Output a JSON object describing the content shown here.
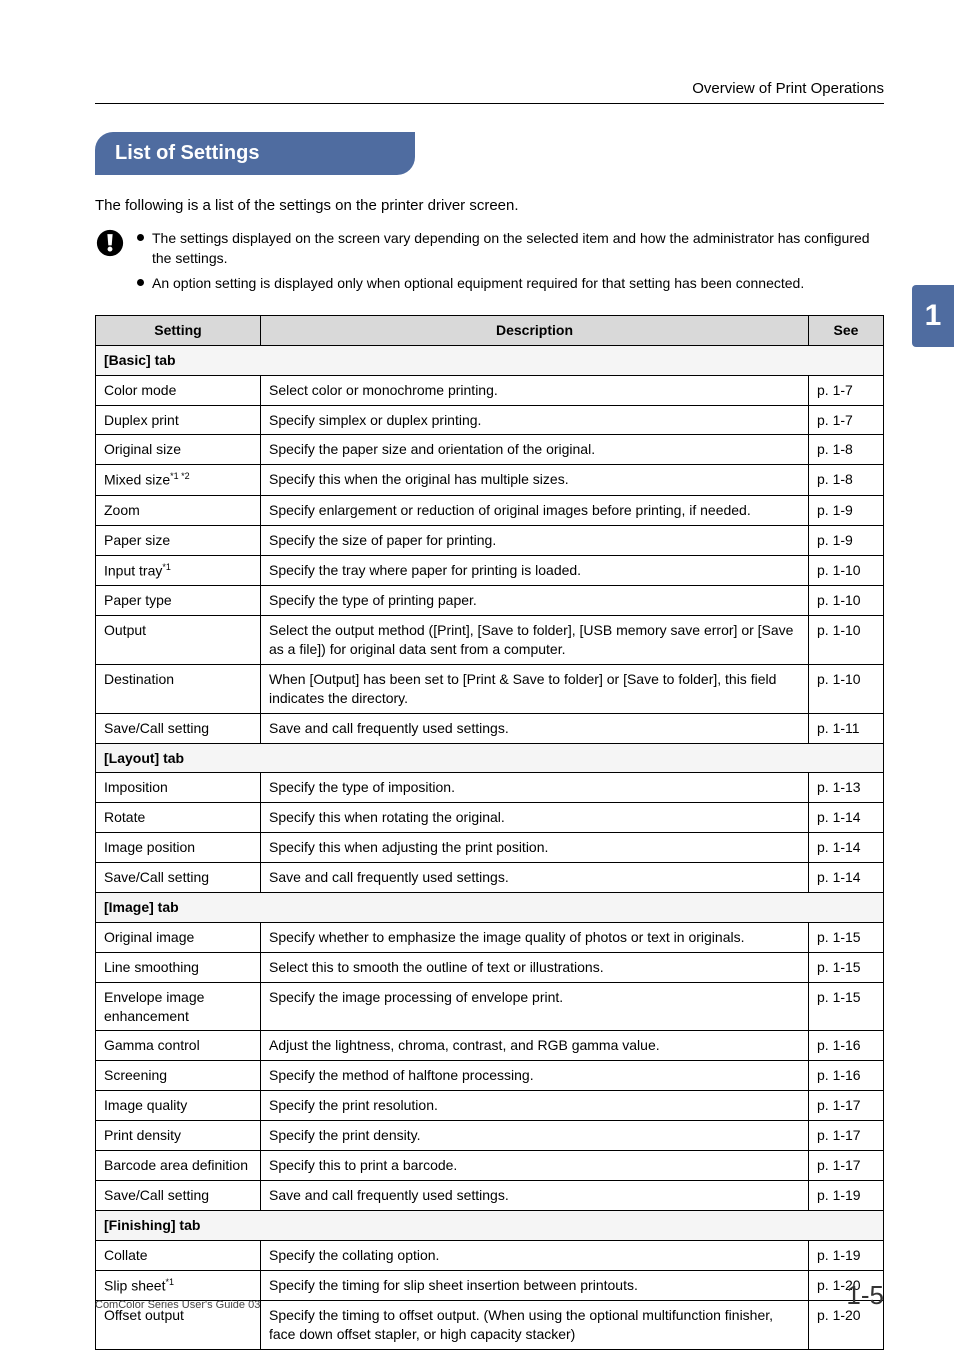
{
  "header": {
    "section_title": "Overview of Print Operations"
  },
  "chapter_tab": "1",
  "title_pill": "List of Settings",
  "intro": "The following is a list of the settings on the printer driver screen.",
  "notes": [
    "The settings displayed on the screen vary depending on the selected item and how the administrator has configured the settings.",
    "An option setting is displayed only when optional equipment required for that setting has been connected."
  ],
  "table": {
    "headers": {
      "setting": "Setting",
      "description": "Description",
      "see": "See"
    },
    "groups": [
      {
        "label": "[Basic] tab",
        "rows": [
          {
            "setting": "Color mode",
            "sup": "",
            "desc": "Select color or monochrome printing.",
            "see": "p. 1-7"
          },
          {
            "setting": "Duplex print",
            "sup": "",
            "desc": "Specify simplex or duplex printing.",
            "see": "p. 1-7"
          },
          {
            "setting": "Original size",
            "sup": "",
            "desc": "Specify the paper size and orientation of the original.",
            "see": "p. 1-8"
          },
          {
            "setting": "Mixed size",
            "sup": "*1 *2",
            "desc": "Specify this when the original has multiple sizes.",
            "see": "p. 1-8"
          },
          {
            "setting": "Zoom",
            "sup": "",
            "desc": "Specify enlargement or reduction of original images before printing, if needed.",
            "see": "p. 1-9"
          },
          {
            "setting": "Paper size",
            "sup": "",
            "desc": "Specify the size of paper for printing.",
            "see": "p. 1-9"
          },
          {
            "setting": "Input tray",
            "sup": "*1",
            "desc": "Specify the tray where paper for printing is loaded.",
            "see": "p. 1-10"
          },
          {
            "setting": "Paper type",
            "sup": "",
            "desc": "Specify the type of printing paper.",
            "see": "p. 1-10"
          },
          {
            "setting": "Output",
            "sup": "",
            "desc": "Select the output method ([Print], [Save to folder], [USB memory save error] or [Save as a file]) for original data sent from a computer.",
            "see": "p. 1-10"
          },
          {
            "setting": "Destination",
            "sup": "",
            "desc": "When [Output] has been set to [Print & Save to folder] or [Save to folder], this field indicates the directory.",
            "see": "p. 1-10"
          },
          {
            "setting": "Save/Call setting",
            "sup": "",
            "desc": "Save and call frequently used settings.",
            "see": "p. 1-11"
          }
        ]
      },
      {
        "label": "[Layout] tab",
        "rows": [
          {
            "setting": "Imposition",
            "sup": "",
            "desc": "Specify the type of imposition.",
            "see": "p. 1-13"
          },
          {
            "setting": "Rotate",
            "sup": "",
            "desc": "Specify this when rotating the original.",
            "see": "p. 1-14"
          },
          {
            "setting": "Image position",
            "sup": "",
            "desc": "Specify this when adjusting the print position.",
            "see": "p. 1-14"
          },
          {
            "setting": "Save/Call setting",
            "sup": "",
            "desc": "Save and call frequently used settings.",
            "see": "p. 1-14"
          }
        ]
      },
      {
        "label": "[Image] tab",
        "rows": [
          {
            "setting": "Original image",
            "sup": "",
            "desc": "Specify whether to emphasize the image quality of photos or text in originals.",
            "see": "p. 1-15"
          },
          {
            "setting": "Line smoothing",
            "sup": "",
            "desc": "Select this to smooth the outline of text or illustrations.",
            "see": "p. 1-15"
          },
          {
            "setting": "Envelope image enhancement",
            "sup": "",
            "desc": "Specify the image processing of envelope print.",
            "see": "p. 1-15"
          },
          {
            "setting": "Gamma control",
            "sup": "",
            "desc": "Adjust the lightness, chroma, contrast, and RGB gamma value.",
            "see": "p. 1-16"
          },
          {
            "setting": "Screening",
            "sup": "",
            "desc": "Specify the method of halftone processing.",
            "see": "p. 1-16"
          },
          {
            "setting": "Image quality",
            "sup": "",
            "desc": "Specify the print resolution.",
            "see": "p. 1-17"
          },
          {
            "setting": "Print density",
            "sup": "",
            "desc": "Specify the print density.",
            "see": "p. 1-17"
          },
          {
            "setting": "Barcode area definition",
            "sup": "",
            "desc": "Specify this to print a barcode.",
            "see": "p. 1-17"
          },
          {
            "setting": "Save/Call setting",
            "sup": "",
            "desc": "Save and call frequently used settings.",
            "see": "p. 1-19"
          }
        ]
      },
      {
        "label": "[Finishing] tab",
        "rows": [
          {
            "setting": "Collate",
            "sup": "",
            "desc": "Specify the collating option.",
            "see": "p. 1-19"
          },
          {
            "setting": "Slip sheet",
            "sup": "*1",
            "desc": "Specify the timing for slip sheet insertion between printouts.",
            "see": "p. 1-20"
          },
          {
            "setting": "Offset output",
            "sup": "",
            "desc": "Specify the timing to offset output. (When using the optional multifunction finisher, face down offset stapler, or high capacity stacker)",
            "see": "p. 1-20"
          }
        ]
      }
    ]
  },
  "footer": {
    "guide": "ComColor Series User's Guide 03",
    "page": "1-5"
  },
  "colors": {
    "accent": "#4f6ca0",
    "header_bg": "#d9d9d9",
    "section_bg": "#f5f5f5"
  }
}
